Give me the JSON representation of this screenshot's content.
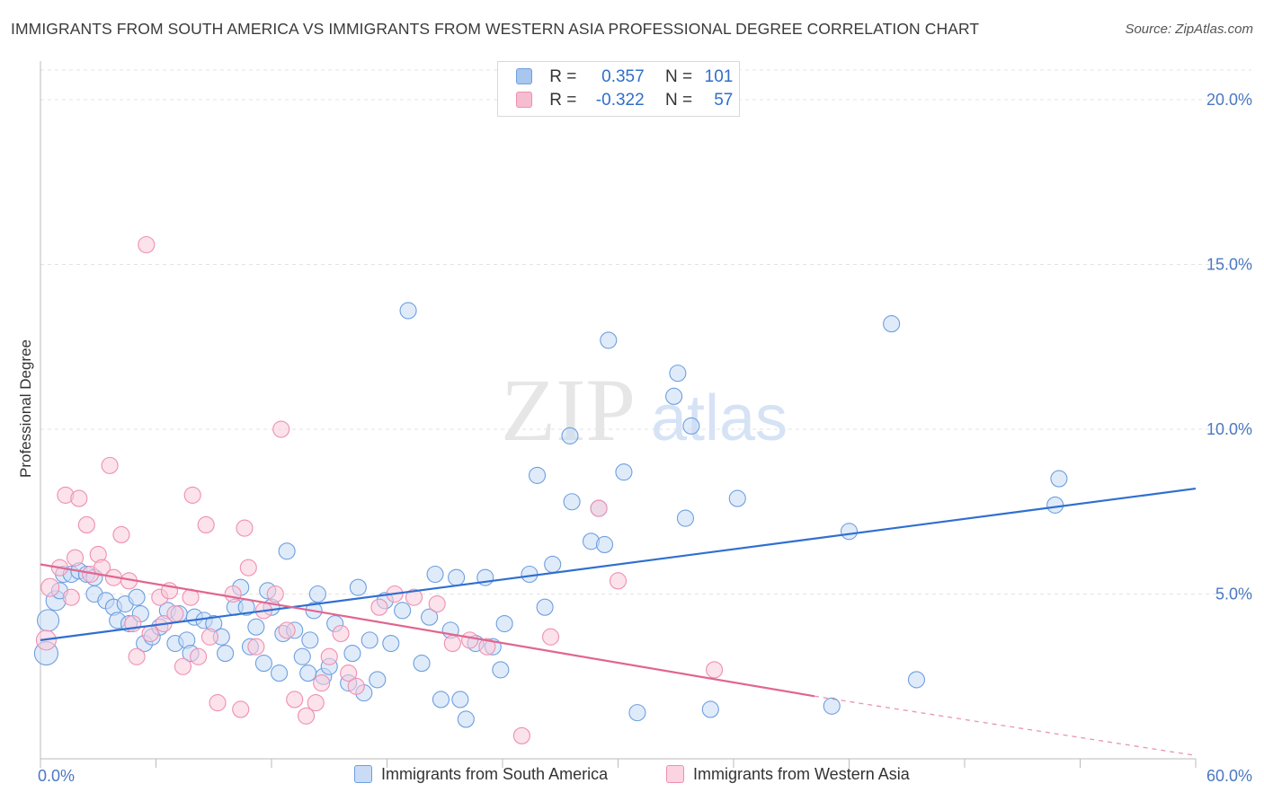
{
  "title": "IMMIGRANTS FROM SOUTH AMERICA VS IMMIGRANTS FROM WESTERN ASIA PROFESSIONAL DEGREE CORRELATION CHART",
  "source": "Source: ZipAtlas.com",
  "watermark": {
    "zip": "ZIP",
    "atlas": "atlas"
  },
  "legend": {
    "rows": [
      {
        "r_label": "R =",
        "r_value": "0.357",
        "n_label": "N =",
        "n_value": "101",
        "color": "#a8c6ee",
        "stroke": "#6d9fe0"
      },
      {
        "r_label": "R =",
        "r_value": "-0.322",
        "n_label": "N =",
        "n_value": "57",
        "color": "#f6bcd0",
        "stroke": "#ee8fb1"
      }
    ]
  },
  "bottom_legend": [
    {
      "label": "Immigrants from South America",
      "color": "#c9dbf5",
      "stroke": "#6d9fe0"
    },
    {
      "label": "Immigrants from Western Asia",
      "color": "#fbd3e1",
      "stroke": "#ee8fb1"
    }
  ],
  "chart_data": {
    "type": "scatter",
    "title": "IMMIGRANTS FROM SOUTH AMERICA VS IMMIGRANTS FROM WESTERN ASIA PROFESSIONAL DEGREE CORRELATION CHART",
    "xlabel": "",
    "ylabel": "Professional Degree",
    "xlim": [
      0,
      60
    ],
    "ylim": [
      0,
      20
    ],
    "x_tick_labels": [
      "0.0%",
      "60.0%"
    ],
    "y_tick_labels": [
      {
        "value": 5,
        "label": "5.0%"
      },
      {
        "value": 10,
        "label": "10.0%"
      },
      {
        "value": 15,
        "label": "15.0%"
      },
      {
        "value": 20,
        "label": "20.0%"
      }
    ],
    "grid": true,
    "series": [
      {
        "name": "Immigrants from South America",
        "color": "#7aa8e6",
        "line_color": "#2f6fd0",
        "trend": {
          "x": [
            0,
            60
          ],
          "y": [
            3.6,
            8.2
          ]
        },
        "points": [
          [
            0.3,
            3.2
          ],
          [
            0.4,
            4.2
          ],
          [
            0.8,
            4.8
          ],
          [
            1.0,
            5.1
          ],
          [
            1.2,
            5.6
          ],
          [
            1.6,
            5.6
          ],
          [
            2.0,
            5.7
          ],
          [
            2.4,
            5.6
          ],
          [
            2.8,
            5.5
          ],
          [
            2.8,
            5.0
          ],
          [
            3.4,
            4.8
          ],
          [
            3.8,
            4.6
          ],
          [
            4.0,
            4.2
          ],
          [
            4.4,
            4.7
          ],
          [
            4.6,
            4.1
          ],
          [
            5.0,
            4.9
          ],
          [
            5.2,
            4.4
          ],
          [
            5.4,
            3.5
          ],
          [
            5.8,
            3.7
          ],
          [
            6.2,
            4.0
          ],
          [
            6.6,
            4.5
          ],
          [
            7.0,
            3.5
          ],
          [
            7.2,
            4.4
          ],
          [
            7.6,
            3.6
          ],
          [
            7.8,
            3.2
          ],
          [
            8.0,
            4.3
          ],
          [
            8.5,
            4.2
          ],
          [
            9.0,
            4.1
          ],
          [
            9.4,
            3.7
          ],
          [
            9.6,
            3.2
          ],
          [
            10.1,
            4.6
          ],
          [
            10.4,
            5.2
          ],
          [
            10.7,
            4.6
          ],
          [
            10.9,
            3.4
          ],
          [
            11.2,
            4.0
          ],
          [
            11.6,
            2.9
          ],
          [
            11.8,
            5.1
          ],
          [
            12.0,
            4.6
          ],
          [
            12.4,
            2.6
          ],
          [
            12.6,
            3.8
          ],
          [
            12.8,
            6.3
          ],
          [
            13.2,
            3.9
          ],
          [
            13.6,
            3.1
          ],
          [
            13.9,
            2.6
          ],
          [
            14.0,
            3.6
          ],
          [
            14.2,
            4.5
          ],
          [
            14.4,
            5.0
          ],
          [
            14.7,
            2.5
          ],
          [
            15.0,
            2.8
          ],
          [
            15.3,
            4.1
          ],
          [
            16.0,
            2.3
          ],
          [
            16.2,
            3.2
          ],
          [
            16.5,
            5.2
          ],
          [
            16.8,
            2.0
          ],
          [
            17.1,
            3.6
          ],
          [
            17.5,
            2.4
          ],
          [
            17.9,
            4.8
          ],
          [
            18.2,
            3.5
          ],
          [
            18.8,
            4.5
          ],
          [
            19.1,
            13.6
          ],
          [
            19.8,
            2.9
          ],
          [
            20.2,
            4.3
          ],
          [
            20.5,
            5.6
          ],
          [
            20.8,
            1.8
          ],
          [
            21.3,
            3.9
          ],
          [
            21.6,
            5.5
          ],
          [
            21.8,
            1.8
          ],
          [
            22.1,
            1.2
          ],
          [
            22.6,
            3.5
          ],
          [
            23.1,
            5.5
          ],
          [
            23.5,
            3.4
          ],
          [
            23.9,
            2.7
          ],
          [
            24.1,
            4.1
          ],
          [
            25.4,
            5.6
          ],
          [
            25.8,
            8.6
          ],
          [
            26.2,
            4.6
          ],
          [
            26.6,
            5.9
          ],
          [
            27.6,
            7.8
          ],
          [
            27.5,
            9.8
          ],
          [
            28.6,
            6.6
          ],
          [
            29.0,
            7.6
          ],
          [
            29.3,
            6.5
          ],
          [
            29.5,
            12.7
          ],
          [
            30.3,
            8.7
          ],
          [
            31.0,
            1.4
          ],
          [
            32.9,
            11.0
          ],
          [
            33.1,
            11.7
          ],
          [
            33.5,
            7.3
          ],
          [
            33.8,
            10.1
          ],
          [
            34.8,
            1.5
          ],
          [
            36.2,
            7.9
          ],
          [
            41.1,
            1.6
          ],
          [
            42.0,
            6.9
          ],
          [
            44.2,
            13.2
          ],
          [
            45.5,
            2.4
          ],
          [
            52.7,
            7.7
          ],
          [
            52.9,
            8.5
          ]
        ]
      },
      {
        "name": "Immigrants from Western Asia",
        "color": "#f3a6c1",
        "line_color": "#e0668f",
        "trend_solid": {
          "x": [
            0,
            40.2
          ],
          "y": [
            5.9,
            1.9
          ]
        },
        "trend_dashed": {
          "x": [
            40.2,
            60
          ],
          "y": [
            1.9,
            0.1
          ]
        },
        "points": [
          [
            0.3,
            3.6
          ],
          [
            0.5,
            5.2
          ],
          [
            1.0,
            5.8
          ],
          [
            1.3,
            8.0
          ],
          [
            1.6,
            4.9
          ],
          [
            1.8,
            6.1
          ],
          [
            2.0,
            7.9
          ],
          [
            2.4,
            7.1
          ],
          [
            2.6,
            5.6
          ],
          [
            3.0,
            6.2
          ],
          [
            3.2,
            5.8
          ],
          [
            3.6,
            8.9
          ],
          [
            3.8,
            5.5
          ],
          [
            4.2,
            6.8
          ],
          [
            4.6,
            5.4
          ],
          [
            4.8,
            4.1
          ],
          [
            5.0,
            3.1
          ],
          [
            5.5,
            15.6
          ],
          [
            5.7,
            3.8
          ],
          [
            6.2,
            4.9
          ],
          [
            6.4,
            4.1
          ],
          [
            6.7,
            5.1
          ],
          [
            7.0,
            4.4
          ],
          [
            7.4,
            2.8
          ],
          [
            7.8,
            4.9
          ],
          [
            7.9,
            8.0
          ],
          [
            8.2,
            3.1
          ],
          [
            8.6,
            7.1
          ],
          [
            8.8,
            3.7
          ],
          [
            9.2,
            1.7
          ],
          [
            10.0,
            5.0
          ],
          [
            10.4,
            1.5
          ],
          [
            10.6,
            7.0
          ],
          [
            10.8,
            5.8
          ],
          [
            11.2,
            3.4
          ],
          [
            11.6,
            4.5
          ],
          [
            12.2,
            5.0
          ],
          [
            12.5,
            10.0
          ],
          [
            12.8,
            3.9
          ],
          [
            13.2,
            1.8
          ],
          [
            13.8,
            1.3
          ],
          [
            14.3,
            1.7
          ],
          [
            14.6,
            2.3
          ],
          [
            15.0,
            3.1
          ],
          [
            15.6,
            3.8
          ],
          [
            16.0,
            2.6
          ],
          [
            16.4,
            2.2
          ],
          [
            17.6,
            4.6
          ],
          [
            18.4,
            5.0
          ],
          [
            19.4,
            4.9
          ],
          [
            20.6,
            4.7
          ],
          [
            21.4,
            3.5
          ],
          [
            22.3,
            3.6
          ],
          [
            23.2,
            3.4
          ],
          [
            25.0,
            0.7
          ],
          [
            26.5,
            3.7
          ],
          [
            29.0,
            7.6
          ],
          [
            30.0,
            5.4
          ],
          [
            35.0,
            2.7
          ]
        ]
      }
    ]
  }
}
